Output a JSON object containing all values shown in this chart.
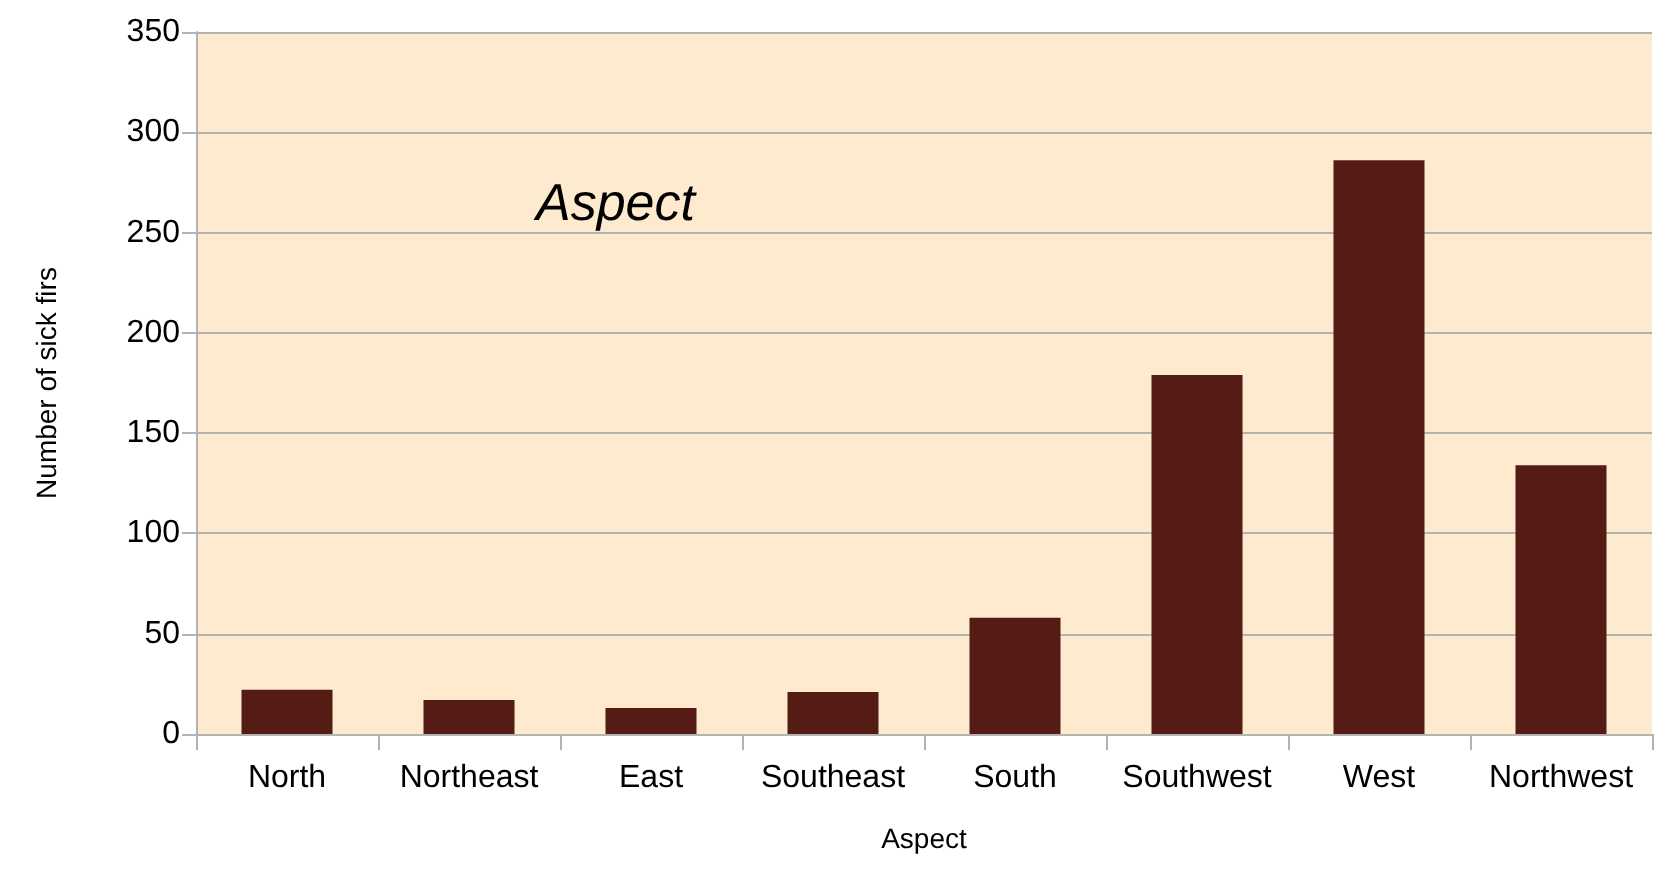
{
  "chart_data": {
    "type": "bar",
    "title": "Aspect",
    "xlabel": "Aspect",
    "ylabel": "Number of sick firs",
    "categories": [
      "North",
      "Northeast",
      "East",
      "Southeast",
      "South",
      "Southwest",
      "West",
      "Northwest"
    ],
    "values": [
      22,
      17,
      13,
      21,
      58,
      179,
      286,
      134
    ],
    "color": "#541c15",
    "ylim": [
      0,
      350
    ],
    "yticks": [
      0,
      50,
      100,
      150,
      200,
      250,
      300,
      350
    ],
    "grid": "y"
  }
}
